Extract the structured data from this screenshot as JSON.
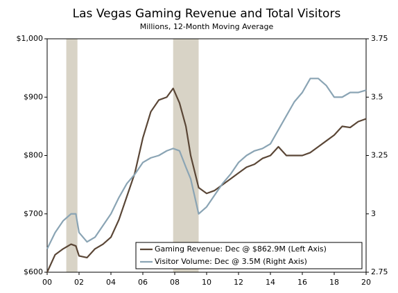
{
  "chart_data": {
    "type": "line",
    "title": "Las Vegas Gaming Revenue and Total Visitors",
    "subtitle": "Millions, 12-Month Moving Average",
    "x": [
      0,
      0.5,
      1,
      1.5,
      1.8,
      2,
      2.5,
      3,
      3.5,
      4,
      4.5,
      5,
      5.5,
      6,
      6.5,
      7,
      7.5,
      7.9,
      8.3,
      8.7,
      9,
      9.5,
      10,
      10.5,
      11,
      11.5,
      12,
      12.5,
      13,
      13.5,
      14,
      14.5,
      15,
      15.5,
      16,
      16.5,
      17,
      17.5,
      18,
      18.5,
      19,
      19.5,
      20
    ],
    "series": [
      {
        "name": "Gaming Revenue: Dec @ $862.9M (Left Axis)",
        "color": "#5a4636",
        "axis": "y",
        "values": [
          600,
          630,
          640,
          648,
          645,
          628,
          625,
          640,
          648,
          660,
          690,
          730,
          770,
          830,
          875,
          895,
          900,
          915,
          890,
          850,
          800,
          745,
          735,
          740,
          750,
          760,
          770,
          780,
          785,
          795,
          800,
          815,
          800,
          800,
          800,
          805,
          815,
          825,
          835,
          850,
          848,
          858,
          862.9
        ]
      },
      {
        "name": "Visitor Volume: Dec @ 3.5M (Right Axis)",
        "color": "#8aa4b4",
        "axis": "y2",
        "values": [
          2.85,
          2.92,
          2.97,
          3.0,
          3.0,
          2.92,
          2.88,
          2.9,
          2.95,
          3.0,
          3.07,
          3.13,
          3.17,
          3.22,
          3.24,
          3.25,
          3.27,
          3.28,
          3.27,
          3.2,
          3.15,
          3.0,
          3.03,
          3.08,
          3.13,
          3.17,
          3.22,
          3.25,
          3.27,
          3.28,
          3.3,
          3.36,
          3.42,
          3.48,
          3.52,
          3.58,
          3.58,
          3.55,
          3.5,
          3.5,
          3.52,
          3.52,
          3.53
        ]
      }
    ],
    "shaded_regions": [
      [
        1.2,
        1.9
      ],
      [
        7.9,
        9.5
      ]
    ],
    "shade_color": "#d8d3c6",
    "xlim": [
      0,
      20
    ],
    "xticks": [
      {
        "value": 0,
        "label": "00"
      },
      {
        "value": 2,
        "label": "02"
      },
      {
        "value": 4,
        "label": "04"
      },
      {
        "value": 6,
        "label": "06"
      },
      {
        "value": 8,
        "label": "08"
      },
      {
        "value": 10,
        "label": "10"
      },
      {
        "value": 12,
        "label": "12"
      },
      {
        "value": 14,
        "label": "14"
      },
      {
        "value": 16,
        "label": "16"
      },
      {
        "value": 18,
        "label": "18"
      },
      {
        "value": 20,
        "label": "20"
      }
    ],
    "ylim": [
      600,
      1000
    ],
    "yticks": [
      {
        "value": 600,
        "label": "$600"
      },
      {
        "value": 700,
        "label": "$700"
      },
      {
        "value": 800,
        "label": "$800"
      },
      {
        "value": 900,
        "label": "$900"
      },
      {
        "value": 1000,
        "label": "$1,000"
      }
    ],
    "y2lim": [
      2.75,
      3.75
    ],
    "y2ticks": [
      2.75,
      3,
      3.25,
      3.5,
      3.75
    ],
    "legend": "bottom-right"
  }
}
